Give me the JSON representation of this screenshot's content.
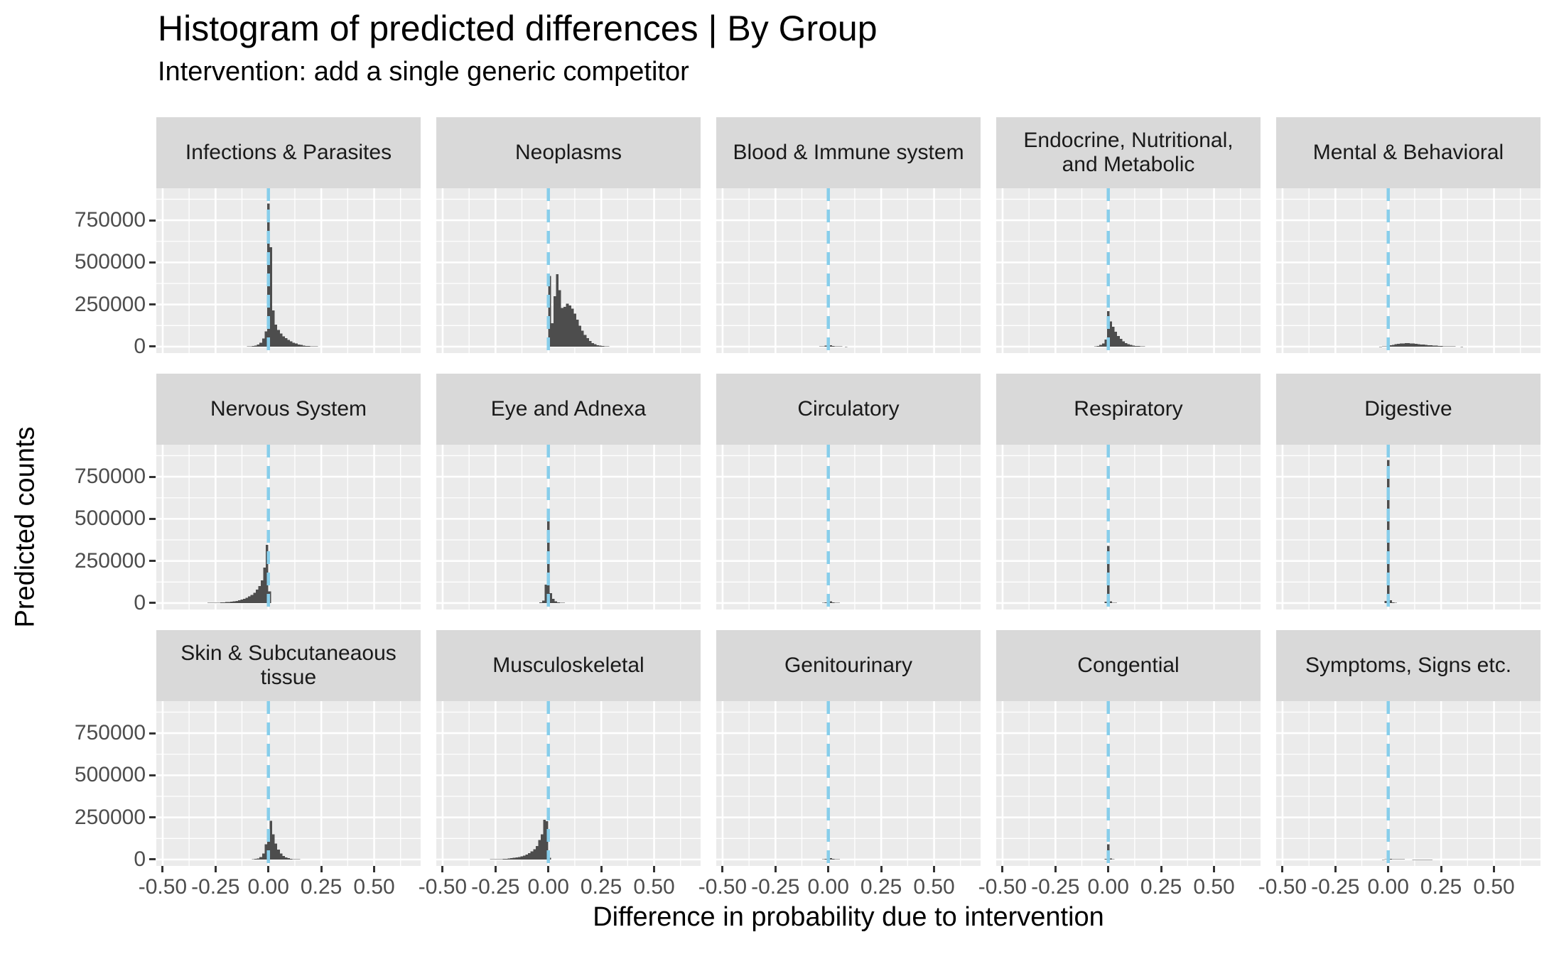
{
  "chart_data": {
    "type": "bar",
    "subtype": "faceted-histogram",
    "title": "Histogram of predicted differences | By Group",
    "subtitle": "Intervention: add a single generic competitor",
    "xlabel": "Difference in probability due to intervention",
    "ylabel": "Predicted counts",
    "x_tick_values": [
      -0.5,
      -0.25,
      0.0,
      0.25,
      0.5
    ],
    "x_tick_labels": [
      "-0.50",
      "-0.25",
      "0.00",
      "0.25",
      "0.50"
    ],
    "y_tick_values": [
      0,
      250000,
      500000,
      750000
    ],
    "y_tick_labels": [
      "0",
      "250000",
      "500000",
      "750000"
    ],
    "x_minor": [
      -0.375,
      -0.125,
      0.125,
      0.375,
      0.625
    ],
    "y_minor": [
      125000,
      375000,
      625000,
      875000
    ],
    "xlim": [
      -0.53,
      0.72
    ],
    "ylim": [
      -38000,
      940000
    ],
    "bin_width": 0.012,
    "grid": "on",
    "legend_position": "none",
    "vline": {
      "x": 0,
      "style": "dashed",
      "color": "#87CEEB"
    },
    "colors": {
      "bar": "#4D4D4D",
      "panel_bg": "#EBEBEB",
      "strip_bg": "#D9D9D9",
      "gridline": "#FFFFFF",
      "vline": "#87CEEB",
      "tick_label": "#4D4D4D",
      "tick_mark": "#333333",
      "text": "#000000"
    },
    "facets": [
      {
        "label": "Infections & Parasites",
        "bins": [
          [
            -0.096,
            1200
          ],
          [
            -0.084,
            2000
          ],
          [
            -0.072,
            3500
          ],
          [
            -0.06,
            6500
          ],
          [
            -0.048,
            12000
          ],
          [
            -0.036,
            24000
          ],
          [
            -0.024,
            48000
          ],
          [
            -0.012,
            90000
          ],
          [
            0,
            850000
          ],
          [
            0.012,
            590000
          ],
          [
            0.024,
            215000
          ],
          [
            0.036,
            130000
          ],
          [
            0.048,
            98000
          ],
          [
            0.06,
            78000
          ],
          [
            0.072,
            62000
          ],
          [
            0.084,
            50000
          ],
          [
            0.096,
            40000
          ],
          [
            0.108,
            31000
          ],
          [
            0.12,
            24000
          ],
          [
            0.132,
            18000
          ],
          [
            0.144,
            13000
          ],
          [
            0.156,
            9500
          ],
          [
            0.168,
            7000
          ],
          [
            0.18,
            5000
          ],
          [
            0.192,
            3600
          ],
          [
            0.204,
            2600
          ],
          [
            0.216,
            1800
          ],
          [
            0.228,
            1300
          ]
        ]
      },
      {
        "label": "Neoplasms",
        "bins": [
          [
            0.006,
            420000
          ],
          [
            0.018,
            140000
          ],
          [
            0.03,
            300000
          ],
          [
            0.042,
            430000
          ],
          [
            0.054,
            335000
          ],
          [
            0.066,
            230000
          ],
          [
            0.078,
            235000
          ],
          [
            0.09,
            255000
          ],
          [
            0.102,
            245000
          ],
          [
            0.114,
            225000
          ],
          [
            0.126,
            195000
          ],
          [
            0.138,
            160000
          ],
          [
            0.15,
            125000
          ],
          [
            0.162,
            95000
          ],
          [
            0.174,
            70000
          ],
          [
            0.186,
            50000
          ],
          [
            0.198,
            34000
          ],
          [
            0.21,
            22000
          ],
          [
            0.222,
            14000
          ],
          [
            0.234,
            9000
          ],
          [
            0.246,
            5500
          ],
          [
            0.258,
            3500
          ],
          [
            0.27,
            2200
          ],
          [
            0.282,
            1400
          ]
        ]
      },
      {
        "label": "Blood & Immune system",
        "bins": [
          [
            -0.048,
            800
          ],
          [
            -0.036,
            1500
          ],
          [
            -0.024,
            3000
          ],
          [
            -0.012,
            7000
          ],
          [
            0,
            30000
          ],
          [
            0.012,
            9000
          ],
          [
            0.024,
            4500
          ],
          [
            0.036,
            2600
          ],
          [
            0.048,
            1700
          ],
          [
            0.06,
            1100
          ],
          [
            0.072,
            700
          ],
          [
            0.084,
            500
          ]
        ]
      },
      {
        "label": "Endocrine, Nutritional,\nand Metabolic",
        "bins": [
          [
            -0.06,
            2500
          ],
          [
            -0.048,
            5000
          ],
          [
            -0.036,
            10000
          ],
          [
            -0.024,
            19000
          ],
          [
            -0.012,
            42000
          ],
          [
            0,
            210000
          ],
          [
            0.012,
            150000
          ],
          [
            0.024,
            118000
          ],
          [
            0.036,
            88000
          ],
          [
            0.048,
            64000
          ],
          [
            0.06,
            46000
          ],
          [
            0.072,
            32000
          ],
          [
            0.084,
            22000
          ],
          [
            0.096,
            15000
          ],
          [
            0.108,
            10500
          ],
          [
            0.12,
            7200
          ],
          [
            0.132,
            4900
          ],
          [
            0.144,
            3300
          ],
          [
            0.156,
            2200
          ],
          [
            0.168,
            1500
          ]
        ]
      },
      {
        "label": "Mental & Behavioral",
        "bins": [
          [
            -0.036,
            500
          ],
          [
            -0.024,
            1000
          ],
          [
            -0.012,
            2200
          ],
          [
            0,
            5000
          ],
          [
            0.012,
            8000
          ],
          [
            0.024,
            11000
          ],
          [
            0.036,
            14000
          ],
          [
            0.048,
            16500
          ],
          [
            0.06,
            18500
          ],
          [
            0.072,
            19500
          ],
          [
            0.084,
            20500
          ],
          [
            0.096,
            20500
          ],
          [
            0.108,
            19500
          ],
          [
            0.12,
            18000
          ],
          [
            0.132,
            16500
          ],
          [
            0.144,
            15000
          ],
          [
            0.156,
            13500
          ],
          [
            0.168,
            12000
          ],
          [
            0.18,
            10500
          ],
          [
            0.192,
            9000
          ],
          [
            0.204,
            7600
          ],
          [
            0.216,
            6400
          ],
          [
            0.228,
            5300
          ],
          [
            0.24,
            4300
          ],
          [
            0.252,
            3500
          ],
          [
            0.264,
            2800
          ],
          [
            0.276,
            2200
          ],
          [
            0.288,
            1700
          ],
          [
            0.3,
            1300
          ],
          [
            0.312,
            1000
          ],
          [
            0.324,
            800
          ],
          [
            0.336,
            600
          ],
          [
            0.348,
            450
          ]
        ]
      },
      {
        "label": "Nervous System",
        "bins": [
          [
            -0.294,
            800
          ],
          [
            -0.282,
            1000
          ],
          [
            -0.27,
            1300
          ],
          [
            -0.258,
            1700
          ],
          [
            -0.246,
            2200
          ],
          [
            -0.234,
            2800
          ],
          [
            -0.222,
            3500
          ],
          [
            -0.21,
            4500
          ],
          [
            -0.198,
            5600
          ],
          [
            -0.186,
            7000
          ],
          [
            -0.174,
            8600
          ],
          [
            -0.162,
            10500
          ],
          [
            -0.15,
            13000
          ],
          [
            -0.138,
            16000
          ],
          [
            -0.126,
            20000
          ],
          [
            -0.114,
            25000
          ],
          [
            -0.102,
            31000
          ],
          [
            -0.09,
            39000
          ],
          [
            -0.078,
            49000
          ],
          [
            -0.066,
            62000
          ],
          [
            -0.054,
            79000
          ],
          [
            -0.042,
            102000
          ],
          [
            -0.03,
            135000
          ],
          [
            -0.018,
            210000
          ],
          [
            -0.006,
            345000
          ],
          [
            0.006,
            70000
          ]
        ]
      },
      {
        "label": "Eye and Adnexa",
        "bins": [
          [
            -0.036,
            4000
          ],
          [
            -0.024,
            14000
          ],
          [
            -0.012,
            110000
          ],
          [
            0,
            560000
          ],
          [
            0.012,
            60000
          ],
          [
            0.024,
            25000
          ],
          [
            0.036,
            11000
          ],
          [
            0.048,
            5000
          ],
          [
            0.06,
            2500
          ],
          [
            0.072,
            1400
          ]
        ]
      },
      {
        "label": "Circulatory",
        "bins": [
          [
            -0.036,
            700
          ],
          [
            -0.024,
            1600
          ],
          [
            -0.012,
            5000
          ],
          [
            0,
            28000
          ],
          [
            0.012,
            9500
          ],
          [
            0.024,
            4200
          ],
          [
            0.036,
            2200
          ],
          [
            0.048,
            1300
          ],
          [
            0.06,
            800
          ]
        ]
      },
      {
        "label": "Respiratory",
        "bins": [
          [
            -0.012,
            9000
          ],
          [
            0,
            340000
          ],
          [
            0.012,
            11000
          ],
          [
            0.024,
            3000
          ],
          [
            0.036,
            1200
          ]
        ]
      },
      {
        "label": "Digestive",
        "bins": [
          [
            -0.012,
            13000
          ],
          [
            0,
            850000
          ],
          [
            0.012,
            16000
          ],
          [
            0.024,
            4000
          ],
          [
            0.036,
            1500
          ]
        ]
      },
      {
        "label": "Skin & Subcutaneaous\ntissue",
        "bins": [
          [
            -0.072,
            1500
          ],
          [
            -0.06,
            3200
          ],
          [
            -0.048,
            7000
          ],
          [
            -0.036,
            15000
          ],
          [
            -0.024,
            35000
          ],
          [
            -0.012,
            90000
          ],
          [
            0,
            175000
          ],
          [
            0.012,
            230000
          ],
          [
            0.024,
            150000
          ],
          [
            0.036,
            95000
          ],
          [
            0.048,
            59000
          ],
          [
            0.06,
            36000
          ],
          [
            0.072,
            22000
          ],
          [
            0.084,
            13000
          ],
          [
            0.096,
            7800
          ],
          [
            0.108,
            4700
          ],
          [
            0.12,
            2900
          ],
          [
            0.132,
            1800
          ],
          [
            0.144,
            1100
          ]
        ]
      },
      {
        "label": "Musculoskeletal",
        "bins": [
          [
            -0.294,
            600
          ],
          [
            -0.282,
            800
          ],
          [
            -0.27,
            1000
          ],
          [
            -0.258,
            1300
          ],
          [
            -0.246,
            1700
          ],
          [
            -0.234,
            2200
          ],
          [
            -0.222,
            2800
          ],
          [
            -0.21,
            3600
          ],
          [
            -0.198,
            4600
          ],
          [
            -0.186,
            5900
          ],
          [
            -0.174,
            7500
          ],
          [
            -0.162,
            9500
          ],
          [
            -0.15,
            12000
          ],
          [
            -0.138,
            15000
          ],
          [
            -0.126,
            19000
          ],
          [
            -0.114,
            24000
          ],
          [
            -0.102,
            30000
          ],
          [
            -0.09,
            38000
          ],
          [
            -0.078,
            48000
          ],
          [
            -0.066,
            62000
          ],
          [
            -0.054,
            80000
          ],
          [
            -0.042,
            115000
          ],
          [
            -0.03,
            150000
          ],
          [
            -0.018,
            235000
          ],
          [
            -0.006,
            228000
          ],
          [
            0.006,
            10000
          ]
        ]
      },
      {
        "label": "Genitourinary",
        "bins": [
          [
            -0.024,
            1200
          ],
          [
            -0.012,
            4500
          ],
          [
            0,
            35000
          ],
          [
            0.012,
            9000
          ],
          [
            0.024,
            3600
          ],
          [
            0.036,
            1800
          ],
          [
            0.048,
            1000
          ],
          [
            0.06,
            600
          ]
        ]
      },
      {
        "label": "Congential",
        "bins": [
          [
            -0.012,
            3500
          ],
          [
            0,
            90000
          ],
          [
            0.012,
            7000
          ],
          [
            0.024,
            2000
          ],
          [
            0.036,
            800
          ]
        ]
      },
      {
        "label": "Symptoms, Signs etc.",
        "bins": [
          [
            -0.024,
            500
          ],
          [
            -0.012,
            1500
          ],
          [
            0,
            6000
          ],
          [
            0.012,
            3200
          ],
          [
            0.024,
            2300
          ],
          [
            0.036,
            1800
          ],
          [
            0.048,
            1500
          ],
          [
            0.06,
            1250
          ],
          [
            0.072,
            1050
          ],
          [
            0.084,
            900
          ],
          [
            0.096,
            750
          ],
          [
            0.108,
            650
          ],
          [
            0.12,
            550
          ],
          [
            0.132,
            480
          ],
          [
            0.144,
            420
          ],
          [
            0.156,
            360
          ],
          [
            0.168,
            310
          ],
          [
            0.18,
            270
          ],
          [
            0.192,
            230
          ],
          [
            0.204,
            200
          ]
        ]
      }
    ]
  }
}
